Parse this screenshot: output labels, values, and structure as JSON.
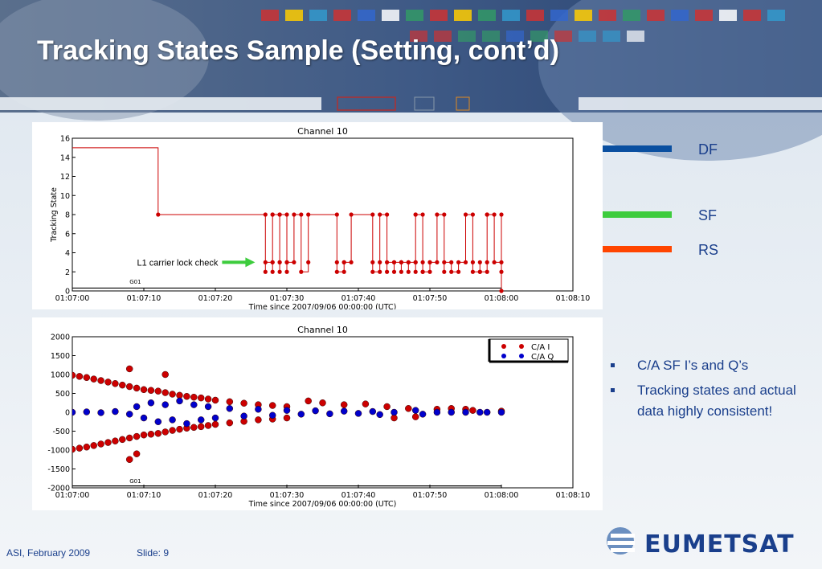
{
  "slide": {
    "title": "Tracking States Sample (Setting, cont’d)",
    "labels": {
      "df": "DF",
      "sf": "SF",
      "rs": "RS"
    },
    "bullets": [
      "C/A SF I’s and Q’s",
      "Tracking states and actual data highly consistent!"
    ],
    "footer": {
      "left": "ASI, February 2009",
      "slide": "Slide: 9"
    },
    "logo": "EUMETSAT"
  },
  "colors": {
    "title": "#ffffff",
    "text_blue": "#1a3f8c",
    "df_arrow": "#0a4fa0",
    "sf_arrow": "#3dcc3d",
    "rs_arrow": "#ff4500",
    "series_red": "#cc0000",
    "series_blue": "#0000cc"
  },
  "chart_data": [
    {
      "type": "line",
      "title": "Channel 10",
      "xlabel": "Time since 2007/09/06 00:00:00 (UTC)",
      "ylabel": "Tracking State",
      "xlim": [
        "01:07:00",
        "01:08:10"
      ],
      "ylim": [
        0,
        16
      ],
      "x_ticks": [
        "01:07:00",
        "01:07:10",
        "01:07:20",
        "01:07:30",
        "01:07:40",
        "01:07:50",
        "01:08:00",
        "01:08:10"
      ],
      "y_ticks": [
        0,
        2,
        4,
        6,
        8,
        10,
        12,
        14,
        16
      ],
      "series": [
        {
          "color": "#cc0000",
          "points": [
            [
              "01:07:00",
              15
            ],
            [
              "01:07:12",
              15
            ],
            [
              "01:07:12",
              8
            ],
            [
              "01:07:27",
              8
            ],
            [
              "01:07:27",
              2
            ],
            [
              "01:07:27",
              3
            ],
            [
              "01:07:28",
              3
            ],
            [
              "01:07:28",
              8
            ],
            [
              "01:07:28",
              2
            ],
            [
              "01:07:28",
              3
            ],
            [
              "01:07:28",
              8
            ],
            [
              "01:07:29",
              8
            ],
            [
              "01:07:29",
              2
            ],
            [
              "01:07:29",
              3
            ],
            [
              "01:07:29",
              3
            ],
            [
              "01:07:29",
              8
            ],
            [
              "01:07:30",
              8
            ],
            [
              "01:07:30",
              3
            ],
            [
              "01:07:30",
              2
            ],
            [
              "01:07:30",
              3
            ],
            [
              "01:07:31",
              3
            ],
            [
              "01:07:31",
              8
            ],
            [
              "01:07:32",
              8
            ],
            [
              "01:07:32",
              2
            ],
            [
              "01:07:33",
              3
            ],
            [
              "01:07:33",
              8
            ],
            [
              "01:07:37",
              8
            ],
            [
              "01:07:37",
              3
            ],
            [
              "01:07:37",
              2
            ],
            [
              "01:07:38",
              2
            ],
            [
              "01:07:38",
              3
            ],
            [
              "01:07:38",
              3
            ],
            [
              "01:07:39",
              3
            ],
            [
              "01:07:39",
              8
            ],
            [
              "01:07:42",
              8
            ],
            [
              "01:07:42",
              3
            ],
            [
              "01:07:42",
              2
            ],
            [
              "01:07:43",
              2
            ],
            [
              "01:07:43",
              3
            ],
            [
              "01:07:43",
              8
            ],
            [
              "01:07:44",
              8
            ],
            [
              "01:07:44",
              2
            ],
            [
              "01:07:44",
              3
            ],
            [
              "01:07:45",
              3
            ],
            [
              "01:07:45",
              2
            ],
            [
              "01:07:45",
              3
            ],
            [
              "01:07:46",
              3
            ],
            [
              "01:07:46",
              2
            ],
            [
              "01:07:46",
              3
            ],
            [
              "01:07:46",
              3
            ],
            [
              "01:07:47",
              3
            ],
            [
              "01:07:47",
              2
            ],
            [
              "01:07:47",
              3
            ],
            [
              "01:07:48",
              3
            ],
            [
              "01:07:48",
              8
            ],
            [
              "01:07:48",
              2
            ],
            [
              "01:07:48",
              3
            ],
            [
              "01:07:48",
              8
            ],
            [
              "01:07:49",
              8
            ],
            [
              "01:07:49",
              2
            ],
            [
              "01:07:49",
              3
            ],
            [
              "01:07:49",
              2
            ],
            [
              "01:07:50",
              2
            ],
            [
              "01:07:50",
              3
            ],
            [
              "01:07:50",
              3
            ],
            [
              "01:07:51",
              3
            ],
            [
              "01:07:51",
              8
            ],
            [
              "01:07:52",
              8
            ],
            [
              "01:07:52",
              2
            ],
            [
              "01:07:52",
              3
            ],
            [
              "01:07:53",
              3
            ],
            [
              "01:07:53",
              2
            ],
            [
              "01:07:54",
              2
            ],
            [
              "01:07:54",
              3
            ],
            [
              "01:07:55",
              3
            ],
            [
              "01:07:55",
              8
            ],
            [
              "01:07:56",
              8
            ],
            [
              "01:07:56",
              3
            ],
            [
              "01:07:56",
              2
            ],
            [
              "01:07:57",
              2
            ],
            [
              "01:07:57",
              3
            ],
            [
              "01:07:57",
              2
            ],
            [
              "01:07:58",
              2
            ],
            [
              "01:07:58",
              8
            ],
            [
              "01:07:58",
              3
            ],
            [
              "01:07:58",
              8
            ],
            [
              "01:07:59",
              8
            ],
            [
              "01:07:59",
              3
            ],
            [
              "01:08:00",
              3
            ],
            [
              "01:08:00",
              2
            ],
            [
              "01:08:00",
              8
            ],
            [
              "01:08:00",
              0
            ]
          ]
        }
      ],
      "annotations": [
        {
          "text": "L1 carrier lock check",
          "x": "01:07:26",
          "y": 3
        },
        {
          "text": "G01",
          "x": "01:07:08",
          "y": 0.5
        }
      ]
    },
    {
      "type": "scatter",
      "title": "Channel 10",
      "xlabel": "Time since 2007/09/06 00:00:00 (UTC)",
      "xlim": [
        "01:07:00",
        "01:08:10"
      ],
      "ylim": [
        -2000,
        2000
      ],
      "x_ticks": [
        "01:07:00",
        "01:07:10",
        "01:07:20",
        "01:07:30",
        "01:07:40",
        "01:07:50",
        "01:08:00",
        "01:08:10"
      ],
      "y_ticks": [
        -2000,
        -1500,
        -1000,
        -500,
        0,
        500,
        1000,
        1500,
        2000
      ],
      "legend": "top-right",
      "series": [
        {
          "name": "C/A  I",
          "color": "#cc0000",
          "points": [
            [
              "01:07:00",
              980
            ],
            [
              "01:07:01",
              950
            ],
            [
              "01:07:02",
              920
            ],
            [
              "01:07:03",
              880
            ],
            [
              "01:07:04",
              840
            ],
            [
              "01:07:05",
              800
            ],
            [
              "01:07:06",
              760
            ],
            [
              "01:07:07",
              720
            ],
            [
              "01:07:08",
              680
            ],
            [
              "01:07:09",
              640
            ],
            [
              "01:07:10",
              600
            ],
            [
              "01:07:11",
              580
            ],
            [
              "01:07:12",
              560
            ],
            [
              "01:07:13",
              520
            ],
            [
              "01:07:14",
              480
            ],
            [
              "01:07:15",
              450
            ],
            [
              "01:07:16",
              420
            ],
            [
              "01:07:17",
              400
            ],
            [
              "01:07:18",
              380
            ],
            [
              "01:07:19",
              350
            ],
            [
              "01:07:20",
              320
            ],
            [
              "01:07:22",
              280
            ],
            [
              "01:07:24",
              240
            ],
            [
              "01:07:26",
              200
            ],
            [
              "01:07:28",
              180
            ],
            [
              "01:07:30",
              150
            ],
            [
              "01:07:00",
              -980
            ],
            [
              "01:07:01",
              -950
            ],
            [
              "01:07:02",
              -920
            ],
            [
              "01:07:03",
              -880
            ],
            [
              "01:07:04",
              -840
            ],
            [
              "01:07:05",
              -800
            ],
            [
              "01:07:06",
              -760
            ],
            [
              "01:07:07",
              -720
            ],
            [
              "01:07:08",
              -680
            ],
            [
              "01:07:09",
              -640
            ],
            [
              "01:07:10",
              -600
            ],
            [
              "01:07:11",
              -580
            ],
            [
              "01:07:12",
              -560
            ],
            [
              "01:07:13",
              -520
            ],
            [
              "01:07:14",
              -480
            ],
            [
              "01:07:15",
              -450
            ],
            [
              "01:07:16",
              -420
            ],
            [
              "01:07:17",
              -400
            ],
            [
              "01:07:18",
              -380
            ],
            [
              "01:07:19",
              -350
            ],
            [
              "01:07:20",
              -320
            ],
            [
              "01:07:22",
              -280
            ],
            [
              "01:07:24",
              -240
            ],
            [
              "01:07:26",
              -200
            ],
            [
              "01:07:28",
              -180
            ],
            [
              "01:07:30",
              -150
            ],
            [
              "01:07:08",
              1150
            ],
            [
              "01:07:08",
              -1250
            ],
            [
              "01:07:09",
              -1100
            ],
            [
              "01:07:13",
              1000
            ],
            [
              "01:07:33",
              300
            ],
            [
              "01:07:35",
              250
            ],
            [
              "01:07:38",
              200
            ],
            [
              "01:07:41",
              220
            ],
            [
              "01:07:44",
              150
            ],
            [
              "01:07:45",
              -150
            ],
            [
              "01:07:47",
              100
            ],
            [
              "01:07:48",
              -120
            ],
            [
              "01:07:51",
              80
            ],
            [
              "01:07:53",
              100
            ],
            [
              "01:07:55",
              80
            ],
            [
              "01:07:56",
              50
            ],
            [
              "01:08:00",
              30
            ]
          ]
        },
        {
          "name": "C/A Q",
          "color": "#0000cc",
          "points": [
            [
              "01:07:00",
              0
            ],
            [
              "01:07:02",
              10
            ],
            [
              "01:07:04",
              -10
            ],
            [
              "01:07:06",
              20
            ],
            [
              "01:07:08",
              -50
            ],
            [
              "01:07:09",
              150
            ],
            [
              "01:07:10",
              -150
            ],
            [
              "01:07:11",
              250
            ],
            [
              "01:07:12",
              -250
            ],
            [
              "01:07:13",
              200
            ],
            [
              "01:07:14",
              -200
            ],
            [
              "01:07:15",
              300
            ],
            [
              "01:07:16",
              -300
            ],
            [
              "01:07:17",
              200
            ],
            [
              "01:07:18",
              -200
            ],
            [
              "01:07:19",
              150
            ],
            [
              "01:07:20",
              -150
            ],
            [
              "01:07:22",
              100
            ],
            [
              "01:07:24",
              -100
            ],
            [
              "01:07:26",
              80
            ],
            [
              "01:07:28",
              -80
            ],
            [
              "01:07:30",
              50
            ],
            [
              "01:07:32",
              -50
            ],
            [
              "01:07:34",
              40
            ],
            [
              "01:07:36",
              -40
            ],
            [
              "01:07:38",
              30
            ],
            [
              "01:07:40",
              -30
            ],
            [
              "01:07:42",
              20
            ],
            [
              "01:07:43",
              -60
            ],
            [
              "01:07:45",
              0
            ],
            [
              "01:07:48",
              50
            ],
            [
              "01:07:49",
              -50
            ],
            [
              "01:07:51",
              0
            ],
            [
              "01:07:53",
              0
            ],
            [
              "01:07:55",
              0
            ],
            [
              "01:07:57",
              0
            ],
            [
              "01:07:58",
              0
            ],
            [
              "01:08:00",
              0
            ]
          ]
        }
      ],
      "annotations": [
        {
          "text": "G01",
          "x": "01:07:08",
          "y": -1850
        }
      ]
    }
  ]
}
